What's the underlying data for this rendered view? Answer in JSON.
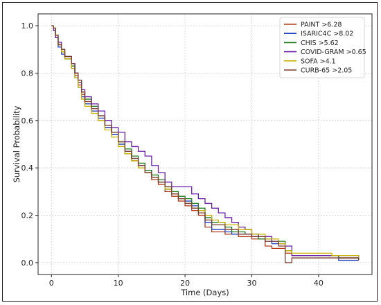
{
  "chart_data": {
    "type": "line",
    "step": true,
    "title": "",
    "xlabel": "Time (Days)",
    "ylabel": "Survival Probability",
    "xlim": [
      -2,
      48
    ],
    "ylim": [
      -0.05,
      1.05
    ],
    "x_ticks": [
      0,
      10,
      20,
      30,
      40
    ],
    "y_ticks": [
      0.0,
      0.2,
      0.4,
      0.6,
      0.8,
      1.0
    ],
    "x_tick_labels": [
      "0",
      "10",
      "20",
      "30",
      "40"
    ],
    "y_tick_labels": [
      "0.0",
      "0.2",
      "0.4",
      "0.6",
      "0.8",
      "1.0"
    ],
    "grid": true,
    "legend_position": "top-right",
    "series": [
      {
        "name": "PAINT >6.28",
        "color": "#b03a1a",
        "points": [
          [
            0,
            1.0
          ],
          [
            0.3,
            0.99
          ],
          [
            0.6,
            0.96
          ],
          [
            1,
            0.92
          ],
          [
            1.5,
            0.89
          ],
          [
            2,
            0.87
          ],
          [
            3,
            0.83
          ],
          [
            3.5,
            0.79
          ],
          [
            4,
            0.75
          ],
          [
            4.5,
            0.71
          ],
          [
            5,
            0.67
          ],
          [
            6,
            0.64
          ],
          [
            7,
            0.6
          ],
          [
            8,
            0.57
          ],
          [
            9,
            0.54
          ],
          [
            10,
            0.5
          ],
          [
            11,
            0.46
          ],
          [
            12,
            0.43
          ],
          [
            13,
            0.4
          ],
          [
            14,
            0.38
          ],
          [
            15,
            0.35
          ],
          [
            16,
            0.33
          ],
          [
            17,
            0.3
          ],
          [
            18,
            0.28
          ],
          [
            19,
            0.26
          ],
          [
            20,
            0.24
          ],
          [
            21,
            0.22
          ],
          [
            22,
            0.2
          ],
          [
            23,
            0.15
          ],
          [
            24,
            0.13
          ],
          [
            26,
            0.12
          ],
          [
            28,
            0.11
          ],
          [
            30,
            0.1
          ],
          [
            32,
            0.07
          ],
          [
            33,
            0.06
          ],
          [
            35,
            0.04
          ],
          [
            36,
            0.03
          ],
          [
            42,
            0.03
          ],
          [
            43,
            0.02
          ],
          [
            46,
            0.02
          ]
        ]
      },
      {
        "name": "ISARIC4C >8.02",
        "color": "#1f3fbf",
        "points": [
          [
            0,
            1.0
          ],
          [
            0.3,
            0.98
          ],
          [
            0.6,
            0.95
          ],
          [
            1,
            0.91
          ],
          [
            1.5,
            0.88
          ],
          [
            2,
            0.86
          ],
          [
            3,
            0.82
          ],
          [
            3.5,
            0.78
          ],
          [
            4,
            0.74
          ],
          [
            4.5,
            0.7
          ],
          [
            5,
            0.67
          ],
          [
            6,
            0.64
          ],
          [
            7,
            0.61
          ],
          [
            8,
            0.57
          ],
          [
            9,
            0.54
          ],
          [
            10,
            0.5
          ],
          [
            11,
            0.47
          ],
          [
            12,
            0.44
          ],
          [
            13,
            0.41
          ],
          [
            14,
            0.39
          ],
          [
            15,
            0.36
          ],
          [
            16,
            0.34
          ],
          [
            17,
            0.31
          ],
          [
            18,
            0.29
          ],
          [
            19,
            0.27
          ],
          [
            20,
            0.26
          ],
          [
            21,
            0.24
          ],
          [
            22,
            0.22
          ],
          [
            23,
            0.17
          ],
          [
            24,
            0.14
          ],
          [
            26,
            0.13
          ],
          [
            27,
            0.12
          ],
          [
            30,
            0.11
          ],
          [
            32,
            0.09
          ],
          [
            33,
            0.08
          ],
          [
            35,
            0.05
          ],
          [
            36,
            0.03
          ],
          [
            43,
            0.01
          ],
          [
            46,
            0.01
          ]
        ]
      },
      {
        "name": "CHIS >5.62",
        "color": "#1d7a1d",
        "points": [
          [
            0,
            1.0
          ],
          [
            0.3,
            0.99
          ],
          [
            0.6,
            0.96
          ],
          [
            1,
            0.92
          ],
          [
            1.5,
            0.9
          ],
          [
            2,
            0.87
          ],
          [
            3,
            0.83
          ],
          [
            3.5,
            0.8
          ],
          [
            4,
            0.76
          ],
          [
            4.5,
            0.72
          ],
          [
            5,
            0.69
          ],
          [
            6,
            0.66
          ],
          [
            7,
            0.62
          ],
          [
            8,
            0.58
          ],
          [
            9,
            0.55
          ],
          [
            10,
            0.51
          ],
          [
            11,
            0.48
          ],
          [
            12,
            0.45
          ],
          [
            13,
            0.42
          ],
          [
            14,
            0.39
          ],
          [
            15,
            0.37
          ],
          [
            16,
            0.35
          ],
          [
            17,
            0.32
          ],
          [
            18,
            0.3
          ],
          [
            19,
            0.28
          ],
          [
            20,
            0.27
          ],
          [
            21,
            0.25
          ],
          [
            22,
            0.23
          ],
          [
            23,
            0.19
          ],
          [
            24,
            0.17
          ],
          [
            26,
            0.15
          ],
          [
            27,
            0.13
          ],
          [
            29,
            0.12
          ],
          [
            31,
            0.1
          ],
          [
            33,
            0.09
          ],
          [
            35,
            0.05
          ],
          [
            36,
            0.03
          ],
          [
            43,
            0.02
          ],
          [
            46,
            0.01
          ]
        ]
      },
      {
        "name": "COVID-GRAM >0.65",
        "color": "#6a1fa8",
        "points": [
          [
            0,
            1.0
          ],
          [
            0.3,
            0.98
          ],
          [
            0.6,
            0.95
          ],
          [
            1,
            0.93
          ],
          [
            1.5,
            0.89
          ],
          [
            2,
            0.87
          ],
          [
            3,
            0.84
          ],
          [
            3.5,
            0.8
          ],
          [
            4,
            0.76
          ],
          [
            4.5,
            0.73
          ],
          [
            5,
            0.7
          ],
          [
            6,
            0.67
          ],
          [
            7,
            0.64
          ],
          [
            8,
            0.6
          ],
          [
            9,
            0.57
          ],
          [
            10,
            0.55
          ],
          [
            11,
            0.51
          ],
          [
            12,
            0.49
          ],
          [
            13,
            0.47
          ],
          [
            14,
            0.45
          ],
          [
            15,
            0.41
          ],
          [
            16,
            0.38
          ],
          [
            17,
            0.34
          ],
          [
            18,
            0.32
          ],
          [
            19,
            0.32
          ],
          [
            20,
            0.32
          ],
          [
            21,
            0.29
          ],
          [
            22,
            0.27
          ],
          [
            23,
            0.25
          ],
          [
            24,
            0.23
          ],
          [
            25,
            0.21
          ],
          [
            26,
            0.19
          ],
          [
            27,
            0.17
          ],
          [
            28,
            0.15
          ],
          [
            29,
            0.14
          ],
          [
            30,
            0.12
          ],
          [
            31,
            0.11
          ],
          [
            33,
            0.09
          ],
          [
            34,
            0.08
          ],
          [
            35,
            0.07
          ],
          [
            36,
            0.03
          ],
          [
            43,
            0.03
          ],
          [
            46,
            0.02
          ]
        ]
      },
      {
        "name": "SOFA >4.1",
        "color": "#c8b400",
        "points": [
          [
            0,
            1.0
          ],
          [
            0.3,
            0.99
          ],
          [
            0.6,
            0.96
          ],
          [
            1,
            0.92
          ],
          [
            1.5,
            0.89
          ],
          [
            2,
            0.86
          ],
          [
            3,
            0.82
          ],
          [
            3.5,
            0.78
          ],
          [
            4,
            0.74
          ],
          [
            4.5,
            0.69
          ],
          [
            5,
            0.66
          ],
          [
            6,
            0.63
          ],
          [
            7,
            0.6
          ],
          [
            8,
            0.56
          ],
          [
            9,
            0.53
          ],
          [
            10,
            0.49
          ],
          [
            11,
            0.46
          ],
          [
            12,
            0.43
          ],
          [
            13,
            0.4
          ],
          [
            14,
            0.38
          ],
          [
            15,
            0.36
          ],
          [
            16,
            0.34
          ],
          [
            17,
            0.31
          ],
          [
            18,
            0.29
          ],
          [
            19,
            0.27
          ],
          [
            20,
            0.25
          ],
          [
            21,
            0.23
          ],
          [
            22,
            0.22
          ],
          [
            23,
            0.2
          ],
          [
            24,
            0.18
          ],
          [
            25,
            0.17
          ],
          [
            26,
            0.16
          ],
          [
            28,
            0.14
          ],
          [
            30,
            0.12
          ],
          [
            32,
            0.1
          ],
          [
            34,
            0.08
          ],
          [
            35,
            0.05
          ],
          [
            36,
            0.04
          ],
          [
            42,
            0.03
          ],
          [
            46,
            0.02
          ]
        ]
      },
      {
        "name": "CURB-65 >2.05",
        "color": "#7a3b2e",
        "points": [
          [
            0,
            1.0
          ],
          [
            0.3,
            0.99
          ],
          [
            0.6,
            0.96
          ],
          [
            1,
            0.92
          ],
          [
            1.5,
            0.9
          ],
          [
            2,
            0.87
          ],
          [
            3,
            0.84
          ],
          [
            3.5,
            0.8
          ],
          [
            4,
            0.77
          ],
          [
            4.5,
            0.72
          ],
          [
            5,
            0.68
          ],
          [
            6,
            0.65
          ],
          [
            7,
            0.62
          ],
          [
            8,
            0.58
          ],
          [
            9,
            0.55
          ],
          [
            10,
            0.51
          ],
          [
            11,
            0.47
          ],
          [
            12,
            0.44
          ],
          [
            13,
            0.41
          ],
          [
            14,
            0.38
          ],
          [
            15,
            0.36
          ],
          [
            16,
            0.34
          ],
          [
            17,
            0.32
          ],
          [
            18,
            0.29
          ],
          [
            19,
            0.27
          ],
          [
            20,
            0.25
          ],
          [
            21,
            0.23
          ],
          [
            22,
            0.21
          ],
          [
            23,
            0.18
          ],
          [
            24,
            0.16
          ],
          [
            26,
            0.14
          ],
          [
            28,
            0.12
          ],
          [
            30,
            0.11
          ],
          [
            32,
            0.09
          ],
          [
            34,
            0.07
          ],
          [
            35,
            0.0
          ],
          [
            36,
            0.02
          ],
          [
            43,
            0.02
          ],
          [
            46,
            0.01
          ]
        ]
      }
    ]
  }
}
